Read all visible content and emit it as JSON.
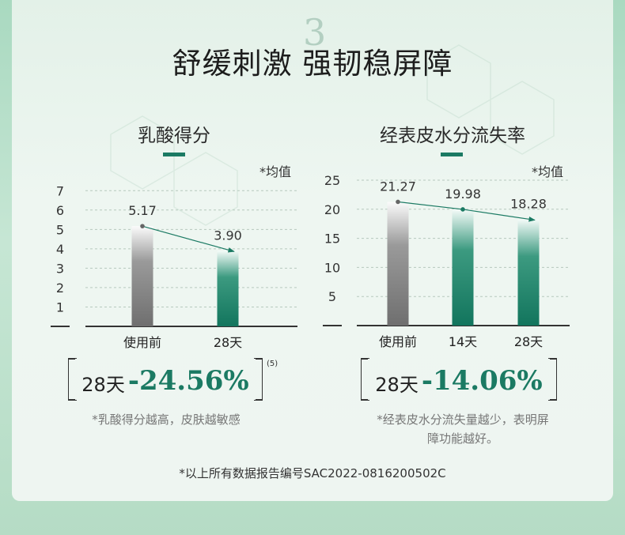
{
  "header": {
    "ghost_number": "3",
    "title": "舒缓刺激 强韧稳屏障"
  },
  "colors": {
    "accent": "#1b7a63",
    "gray_bar": "#7c7c7c"
  },
  "charts": [
    {
      "title": "乳酸得分",
      "avg_note": "*均值",
      "result_day": "28天",
      "result_value": "-24.56%",
      "superscript": "(5)",
      "footnote_lines": [
        "*乳酸得分越高，皮肤越敏感"
      ]
    },
    {
      "title": "经表皮水分流失率",
      "avg_note": "*均值",
      "result_day": "28天",
      "result_value": "-14.06%",
      "footnote_lines": [
        "*经表皮水分流失量越少，表明屏",
        "障功能越好。"
      ]
    }
  ],
  "chart_data": [
    {
      "type": "bar",
      "title": "乳酸得分",
      "categories": [
        "使用前",
        "28天"
      ],
      "values": [
        5.17,
        3.9
      ],
      "value_labels": [
        "5.17",
        "3.90"
      ],
      "yticks": [
        "1",
        "2",
        "3",
        "4",
        "5",
        "6",
        "7"
      ],
      "ylim": [
        0,
        7.5
      ],
      "bar_colors": [
        "gray",
        "green"
      ],
      "trend_arrow": true,
      "grid": true
    },
    {
      "type": "bar",
      "title": "经表皮水分流失率",
      "categories": [
        "使用前",
        "14天",
        "28天"
      ],
      "values": [
        21.27,
        19.98,
        18.28
      ],
      "value_labels": [
        "21.27",
        "19.98",
        "18.28"
      ],
      "yticks": [
        "5",
        "10",
        "15",
        "20",
        "25"
      ],
      "ylim": [
        0,
        25
      ],
      "bar_colors": [
        "gray",
        "green",
        "green"
      ],
      "trend_arrow": true,
      "grid": true
    }
  ],
  "source_note": "*以上所有数据报告编号SAC2022-0816200502C"
}
